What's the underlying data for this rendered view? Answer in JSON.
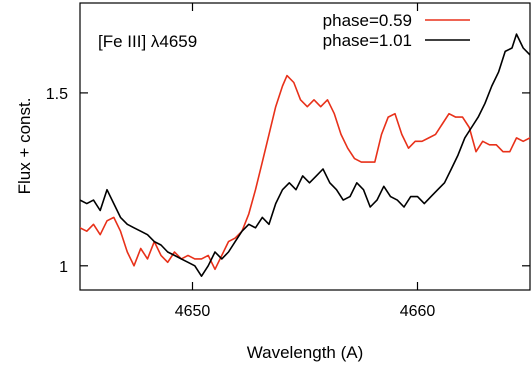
{
  "chart_data": {
    "type": "line",
    "title": "",
    "annotation": "[Fe III] λ4659",
    "xlabel": "Wavelength (A)",
    "ylabel": "Flux + const.",
    "xlim": [
      4645,
      4665
    ],
    "ylim": [
      0.93,
      1.76
    ],
    "xticks": [
      4650,
      4660
    ],
    "yticks": [
      1,
      1.5
    ],
    "ytick_labels": [
      "1",
      "1.5"
    ],
    "grid": false,
    "legend_position": "top-right",
    "series": [
      {
        "name": "phase=0.59",
        "color": "#e8311a",
        "points": [
          [
            4645.0,
            1.11
          ],
          [
            4645.3,
            1.1
          ],
          [
            4645.6,
            1.12
          ],
          [
            4645.9,
            1.09
          ],
          [
            4646.2,
            1.13
          ],
          [
            4646.5,
            1.14
          ],
          [
            4646.8,
            1.1
          ],
          [
            4647.1,
            1.04
          ],
          [
            4647.4,
            1.0
          ],
          [
            4647.7,
            1.05
          ],
          [
            4648.0,
            1.02
          ],
          [
            4648.3,
            1.07
          ],
          [
            4648.6,
            1.03
          ],
          [
            4648.9,
            1.01
          ],
          [
            4649.2,
            1.04
          ],
          [
            4649.5,
            1.02
          ],
          [
            4649.8,
            1.03
          ],
          [
            4650.1,
            1.02
          ],
          [
            4650.4,
            1.02
          ],
          [
            4650.7,
            1.03
          ],
          [
            4651.0,
            0.99
          ],
          [
            4651.3,
            1.03
          ],
          [
            4651.6,
            1.07
          ],
          [
            4651.9,
            1.08
          ],
          [
            4652.2,
            1.1
          ],
          [
            4652.5,
            1.15
          ],
          [
            4652.8,
            1.22
          ],
          [
            4653.1,
            1.3
          ],
          [
            4653.4,
            1.38
          ],
          [
            4653.7,
            1.46
          ],
          [
            4654.0,
            1.52
          ],
          [
            4654.2,
            1.55
          ],
          [
            4654.5,
            1.53
          ],
          [
            4654.8,
            1.48
          ],
          [
            4655.1,
            1.46
          ],
          [
            4655.4,
            1.48
          ],
          [
            4655.7,
            1.46
          ],
          [
            4656.0,
            1.48
          ],
          [
            4656.3,
            1.44
          ],
          [
            4656.6,
            1.38
          ],
          [
            4656.9,
            1.34
          ],
          [
            4657.2,
            1.31
          ],
          [
            4657.5,
            1.3
          ],
          [
            4657.8,
            1.3
          ],
          [
            4658.1,
            1.3
          ],
          [
            4658.4,
            1.38
          ],
          [
            4658.7,
            1.43
          ],
          [
            4659.0,
            1.44
          ],
          [
            4659.3,
            1.38
          ],
          [
            4659.6,
            1.34
          ],
          [
            4659.9,
            1.36
          ],
          [
            4660.2,
            1.36
          ],
          [
            4660.5,
            1.37
          ],
          [
            4660.8,
            1.38
          ],
          [
            4661.1,
            1.41
          ],
          [
            4661.4,
            1.44
          ],
          [
            4661.7,
            1.43
          ],
          [
            4662.0,
            1.43
          ],
          [
            4662.3,
            1.4
          ],
          [
            4662.6,
            1.33
          ],
          [
            4662.9,
            1.36
          ],
          [
            4663.2,
            1.35
          ],
          [
            4663.5,
            1.35
          ],
          [
            4663.8,
            1.33
          ],
          [
            4664.1,
            1.33
          ],
          [
            4664.4,
            1.37
          ],
          [
            4664.7,
            1.36
          ],
          [
            4665.0,
            1.37
          ]
        ]
      },
      {
        "name": "phase=1.01",
        "color": "#000000",
        "points": [
          [
            4645.0,
            1.19
          ],
          [
            4645.3,
            1.18
          ],
          [
            4645.6,
            1.19
          ],
          [
            4645.9,
            1.16
          ],
          [
            4646.2,
            1.22
          ],
          [
            4646.5,
            1.18
          ],
          [
            4646.8,
            1.14
          ],
          [
            4647.1,
            1.12
          ],
          [
            4647.4,
            1.11
          ],
          [
            4647.7,
            1.1
          ],
          [
            4648.0,
            1.09
          ],
          [
            4648.3,
            1.07
          ],
          [
            4648.6,
            1.06
          ],
          [
            4648.9,
            1.04
          ],
          [
            4649.2,
            1.03
          ],
          [
            4649.5,
            1.02
          ],
          [
            4649.8,
            1.01
          ],
          [
            4650.1,
            1.0
          ],
          [
            4650.4,
            0.97
          ],
          [
            4650.7,
            1.0
          ],
          [
            4651.0,
            1.04
          ],
          [
            4651.3,
            1.02
          ],
          [
            4651.6,
            1.04
          ],
          [
            4651.9,
            1.07
          ],
          [
            4652.2,
            1.1
          ],
          [
            4652.5,
            1.12
          ],
          [
            4652.8,
            1.11
          ],
          [
            4653.1,
            1.14
          ],
          [
            4653.4,
            1.12
          ],
          [
            4653.7,
            1.18
          ],
          [
            4654.0,
            1.22
          ],
          [
            4654.3,
            1.24
          ],
          [
            4654.6,
            1.22
          ],
          [
            4654.9,
            1.26
          ],
          [
            4655.2,
            1.24
          ],
          [
            4655.5,
            1.26
          ],
          [
            4655.8,
            1.28
          ],
          [
            4656.1,
            1.24
          ],
          [
            4656.4,
            1.22
          ],
          [
            4656.7,
            1.19
          ],
          [
            4657.0,
            1.2
          ],
          [
            4657.3,
            1.24
          ],
          [
            4657.6,
            1.22
          ],
          [
            4657.9,
            1.17
          ],
          [
            4658.2,
            1.19
          ],
          [
            4658.5,
            1.23
          ],
          [
            4658.8,
            1.2
          ],
          [
            4659.1,
            1.19
          ],
          [
            4659.4,
            1.17
          ],
          [
            4659.7,
            1.2
          ],
          [
            4660.0,
            1.2
          ],
          [
            4660.3,
            1.18
          ],
          [
            4660.6,
            1.2
          ],
          [
            4660.9,
            1.22
          ],
          [
            4661.2,
            1.24
          ],
          [
            4661.5,
            1.28
          ],
          [
            4661.8,
            1.32
          ],
          [
            4662.1,
            1.37
          ],
          [
            4662.4,
            1.4
          ],
          [
            4662.7,
            1.43
          ],
          [
            4663.0,
            1.47
          ],
          [
            4663.3,
            1.52
          ],
          [
            4663.6,
            1.56
          ],
          [
            4663.9,
            1.62
          ],
          [
            4664.2,
            1.63
          ],
          [
            4664.4,
            1.67
          ],
          [
            4664.7,
            1.63
          ],
          [
            4665.0,
            1.61
          ]
        ]
      }
    ]
  }
}
